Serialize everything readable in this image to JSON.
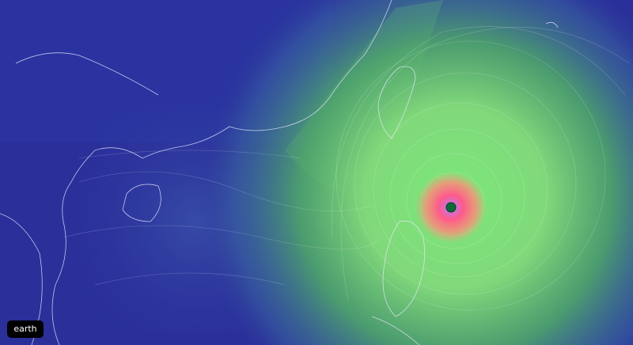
{
  "menu": {
    "earth_label": "earth"
  },
  "colors": {
    "calm": "#2a2f9a",
    "moderate": "#4fa06a",
    "strong": "#8be07a",
    "storm": "#ff6b7a",
    "eye": "#0b6b3a",
    "coastline": "#e8e8ff"
  },
  "storm": {
    "eye_icon": "typhoon-eye"
  }
}
